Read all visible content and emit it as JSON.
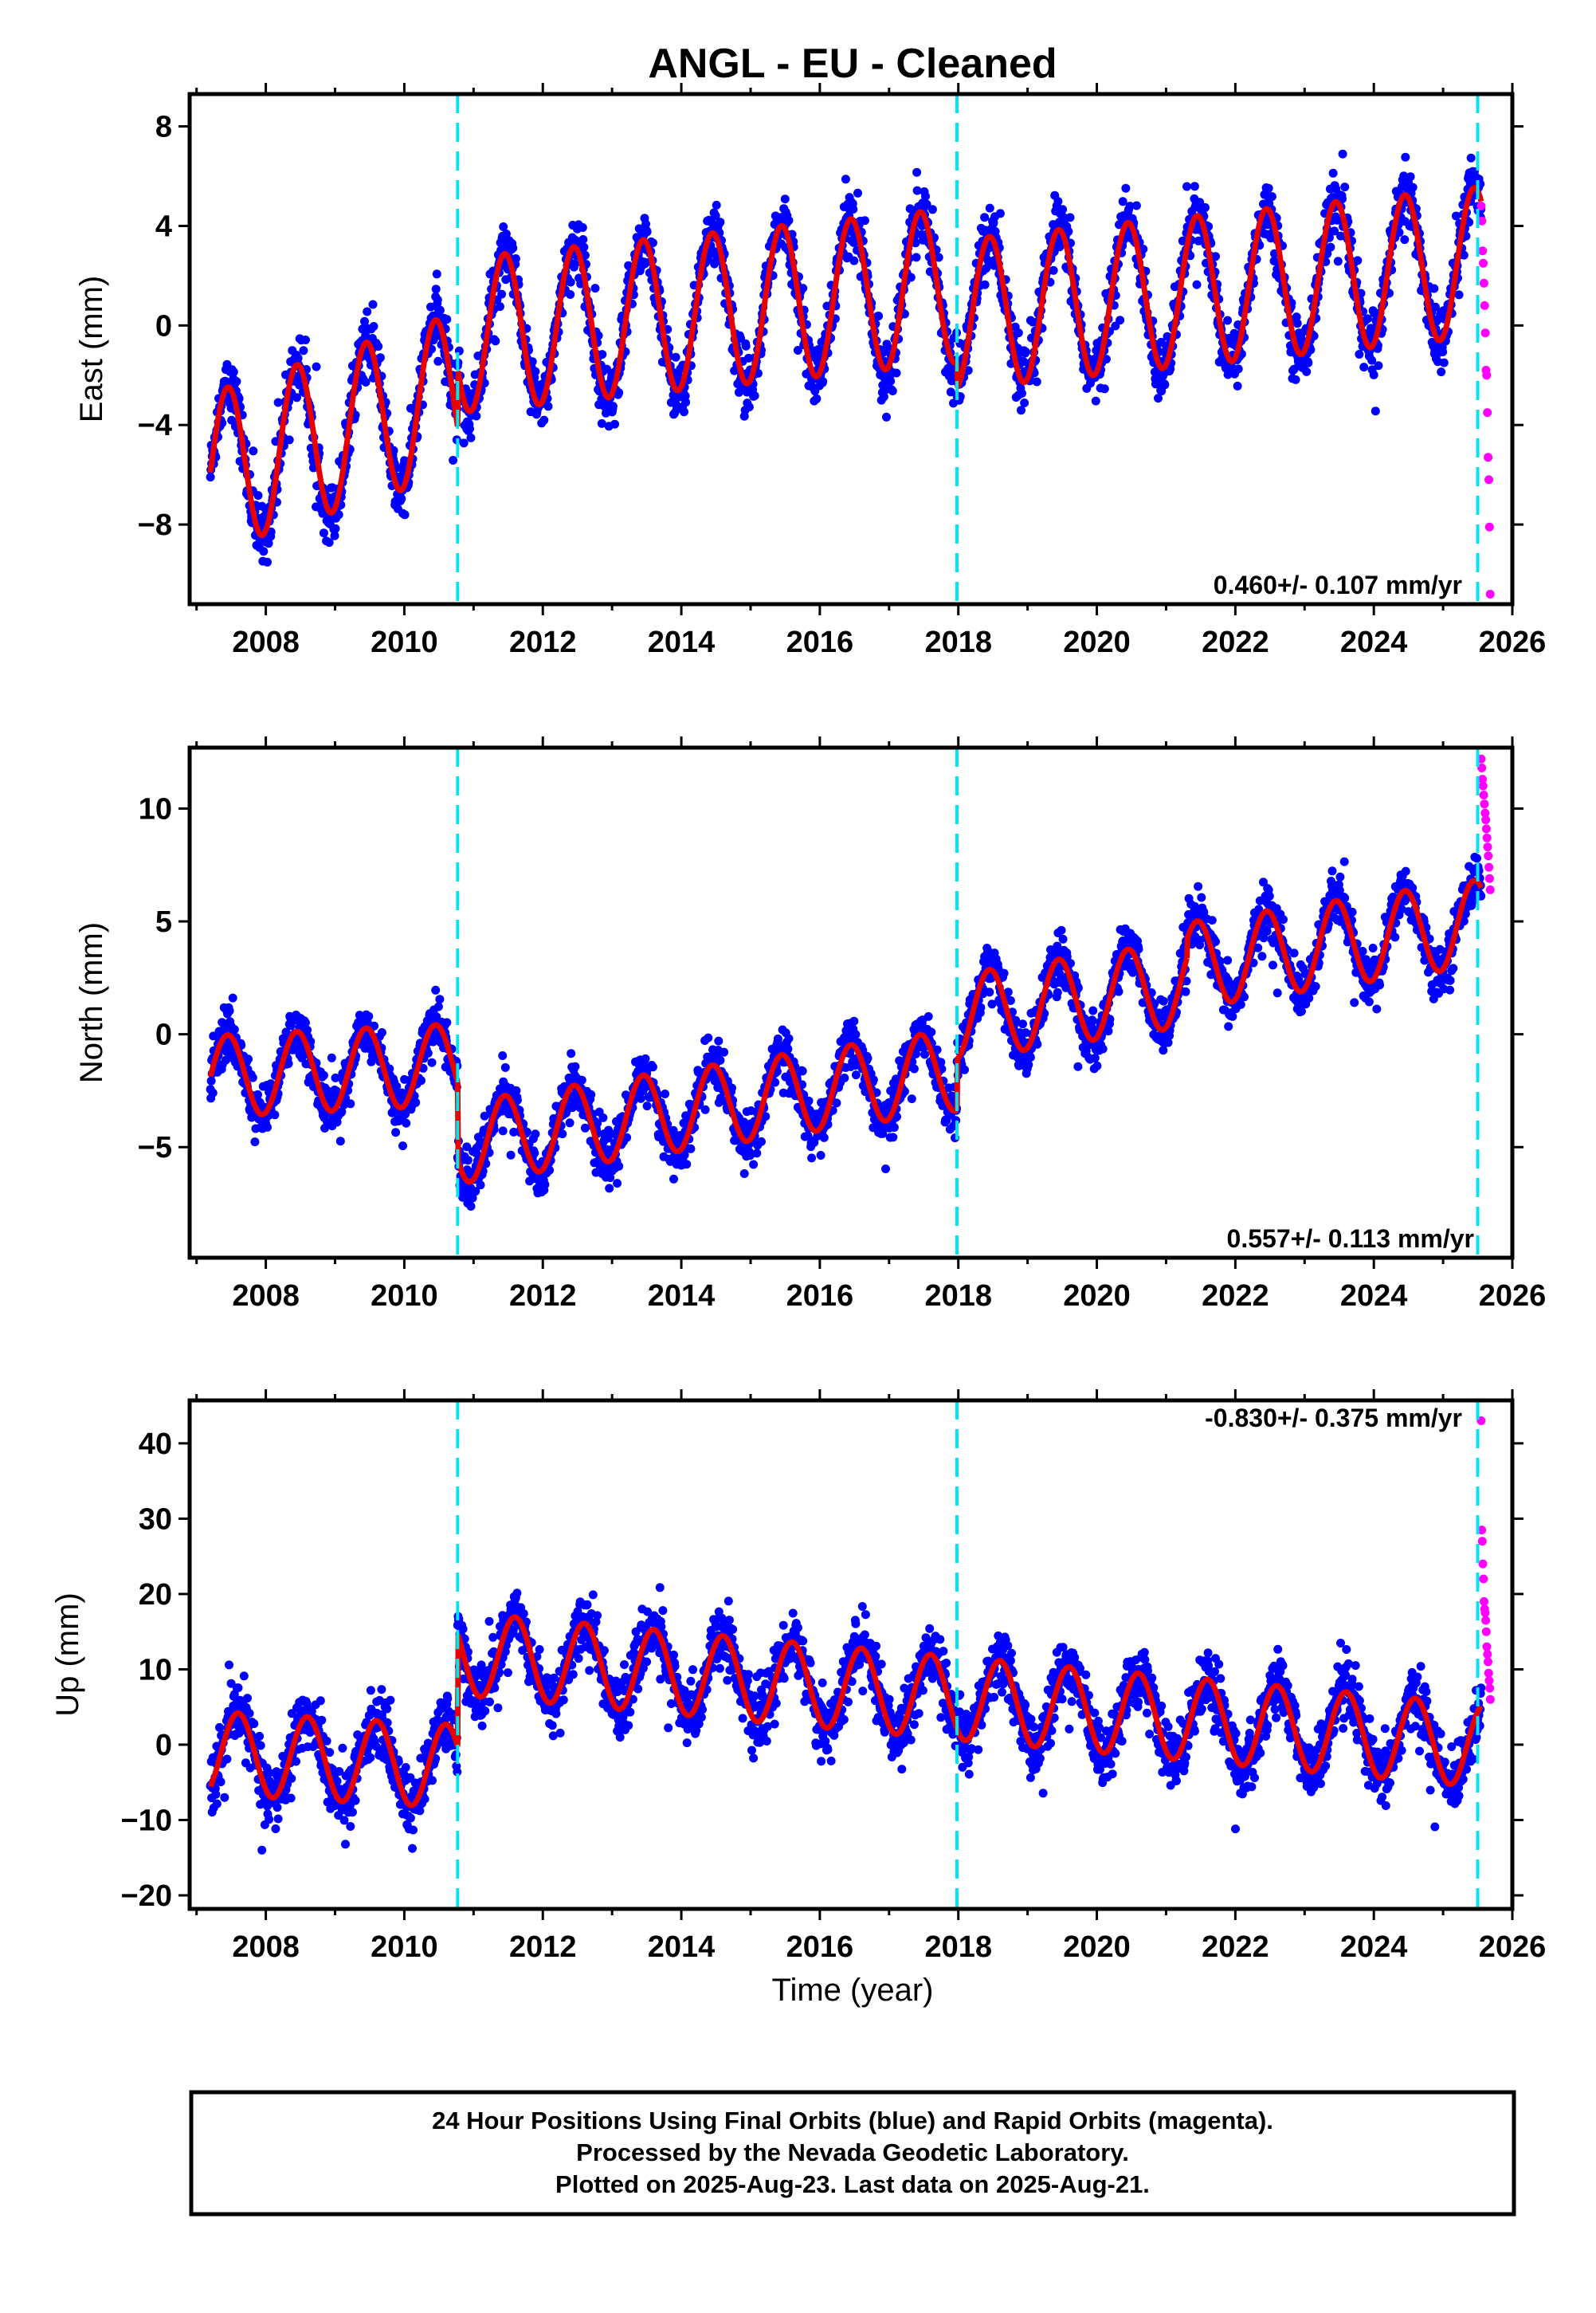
{
  "colors": {
    "final_orbits": "#0000ff",
    "rapid_orbits": "#ff00ff",
    "model_fit": "#e60000",
    "step_lines": "#00e5ee",
    "frame": "#000000"
  },
  "chart_data": {
    "type": "scatter",
    "title": "ANGL  - EU - Cleaned",
    "x_ticks": [
      "2008",
      "2010",
      "2012",
      "2014",
      "2016",
      "2018",
      "2020",
      "2022",
      "2024",
      "2026"
    ],
    "x_tick_values": [
      2008,
      2010,
      2012,
      2014,
      2016,
      2018,
      2020,
      2022,
      2024,
      2026
    ],
    "xlim": [
      2006.9,
      2026.0
    ],
    "xlabel": "Time (year)",
    "step_lines": [
      2010.77,
      2017.98,
      2025.5
    ],
    "grid": false,
    "panels": [
      {
        "id": "east",
        "ylabel": "East (mm)",
        "ylim": [
          -11.2,
          9.3
        ],
        "y_ticks": [
          "8",
          "4",
          "0",
          "−4",
          "−8"
        ],
        "y_tick_values": [
          8,
          4,
          0,
          -4,
          -8
        ],
        "rate": "0.460+/- 0.107 mm/yr",
        "rate_position": "bottom-right",
        "model_segments": [
          {
            "x0": 2007.2,
            "x1": 2010.77,
            "offset": -4.3,
            "trend": 0.9,
            "amplitude": 3.2,
            "peak_phase": 0.45
          },
          {
            "x0": 2010.77,
            "x1": 2017.98,
            "offset": 0.6,
            "trend": 0.28,
            "amplitude": 3.1,
            "peak_phase": 0.45
          },
          {
            "x0": 2017.98,
            "x1": 2025.55,
            "offset": 1.5,
            "trend": 0.28,
            "amplitude": 3.0,
            "peak_phase": 0.45
          }
        ],
        "scatter": 1.1,
        "rapid_points": [
          4.8,
          4.2,
          3.0,
          2.5,
          1.7,
          0.8,
          -0.3,
          -1.8,
          -2.0,
          -3.5,
          -5.3,
          -6.2,
          -8.1,
          -10.8
        ]
      },
      {
        "id": "north",
        "ylabel": "North (mm)",
        "ylim": [
          -9.9,
          12.7
        ],
        "y_ticks": [
          "10",
          "5",
          "0",
          "−5"
        ],
        "y_tick_values": [
          10,
          5,
          0,
          -5
        ],
        "rate": "0.557+/- 0.113 mm/yr",
        "rate_position": "bottom-right",
        "model_segments": [
          {
            "x0": 2007.2,
            "x1": 2010.77,
            "offset": -1.6,
            "trend": 0.15,
            "amplitude": 1.8,
            "peak_phase": 0.45
          },
          {
            "x0": 2010.77,
            "x1": 2017.98,
            "offset": -3.2,
            "trend": 0.45,
            "amplitude": 1.8,
            "peak_phase": 0.45
          },
          {
            "x0": 2017.98,
            "x1": 2021.3,
            "offset": 1.5,
            "trend": 0.45,
            "amplitude": 1.9,
            "peak_phase": 0.45
          },
          {
            "x0": 2021.3,
            "x1": 2025.55,
            "offset": 4.0,
            "trend": 0.45,
            "amplitude": 1.9,
            "peak_phase": 0.45
          }
        ],
        "scatter": 1.0,
        "rapid_points": [
          12.2,
          11.8,
          11.3,
          11.0,
          10.6,
          10.2,
          9.8,
          9.5,
          9.1,
          8.7,
          8.3,
          7.9,
          7.4,
          6.9,
          6.4
        ]
      },
      {
        "id": "up",
        "ylabel": "Up (mm)",
        "ylim": [
          -21.8,
          45.7
        ],
        "y_ticks": [
          "40",
          "30",
          "20",
          "10",
          "0",
          "−10",
          "−20"
        ],
        "y_tick_values": [
          40,
          30,
          20,
          10,
          0,
          -10,
          -20
        ],
        "rate": "-0.830+/- 0.375 mm/yr",
        "rate_position": "top-right",
        "model_segments": [
          {
            "x0": 2007.2,
            "x1": 2010.77,
            "offset": -2.0,
            "trend": -0.5,
            "amplitude": 5.5,
            "peak_phase": 0.6
          },
          {
            "x0": 2010.77,
            "x1": 2025.55,
            "offset": 6.0,
            "trend": -0.83,
            "amplitude": 5.5,
            "peak_phase": 0.6
          }
        ],
        "scatter": 3.6,
        "rapid_points": [
          43,
          28.5,
          27,
          24,
          22,
          19,
          18,
          17.5,
          16.5,
          15,
          13,
          12,
          11,
          9.5,
          8.5,
          7.5,
          6
        ]
      }
    ]
  },
  "footer": {
    "line1": "24 Hour Positions Using Final Orbits (blue) and Rapid Orbits (magenta).",
    "line2": "Processed by the Nevada Geodetic Laboratory.",
    "line3": "Plotted on 2025-Aug-23. Last data on 2025-Aug-21."
  }
}
